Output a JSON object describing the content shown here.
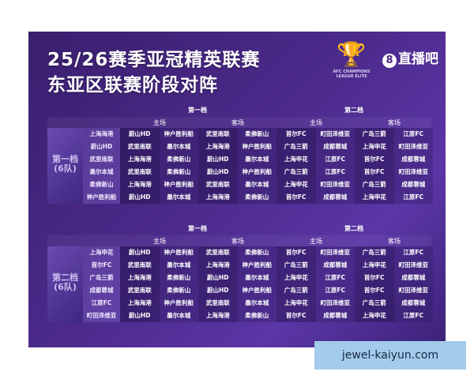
{
  "title": {
    "line1": "25/26赛季亚冠精英联赛",
    "line2": "东亚区联赛阶段对阵"
  },
  "logo": {
    "text": "AFC CHAMPIONS LEAGUE ELITE"
  },
  "brand": {
    "icon": "8",
    "name": "直播吧"
  },
  "headers": {
    "pot1": "第一档",
    "pot2": "第二档",
    "home": "主场",
    "away": "客场"
  },
  "groups": [
    {
      "label": "第一档",
      "count": "(6队)",
      "rows": [
        [
          "上海海港",
          "蔚山HD",
          "神户胜利船",
          "武里南联",
          "柔佛新山",
          "首尔FC",
          "町田泽维亚",
          "广岛三箭",
          "江原FC"
        ],
        [
          "蔚山HD",
          "武里南联",
          "墨尔本城",
          "上海海港",
          "神户胜利船",
          "广岛三箭",
          "成都蓉城",
          "上海申花",
          "町田泽维亚"
        ],
        [
          "武里南联",
          "上海海港",
          "柔佛新山",
          "蔚山HD",
          "墨尔本城",
          "上海申花",
          "江原FC",
          "首尔FC",
          "成都蓉城"
        ],
        [
          "墨尔本城",
          "武里南联",
          "柔佛新山",
          "蔚山HD",
          "神户胜利船",
          "广岛三箭",
          "江原FC",
          "首尔FC",
          "町田泽维亚"
        ],
        [
          "柔佛新山",
          "上海海港",
          "神户胜利船",
          "武里南联",
          "墨尔本城",
          "上海申花",
          "町田泽维亚",
          "广岛三箭",
          "成都蓉城"
        ],
        [
          "神户胜利船",
          "蔚山HD",
          "墨尔本城",
          "上海海港",
          "柔佛新山",
          "首尔FC",
          "成都蓉城",
          "上海申花",
          "江原FC"
        ]
      ]
    },
    {
      "label": "第二档",
      "count": "(6队)",
      "rows": [
        [
          "上海申花",
          "蔚山HD",
          "神户胜利船",
          "武里南联",
          "柔佛新山",
          "首尔FC",
          "町田泽维亚",
          "广岛三箭",
          "江原FC"
        ],
        [
          "首尔FC",
          "武里南联",
          "墨尔本城",
          "上海海港",
          "神户胜利船",
          "广岛三箭",
          "成都蓉城",
          "上海申花",
          "町田泽维亚"
        ],
        [
          "广岛三箭",
          "上海海港",
          "柔佛新山",
          "蔚山HD",
          "墨尔本城",
          "上海申花",
          "江原FC",
          "首尔FC",
          "成都蓉城"
        ],
        [
          "成都蓉城",
          "武里南联",
          "柔佛新山",
          "蔚山HD",
          "神户胜利船",
          "广岛三箭",
          "江原FC",
          "首尔FC",
          "町田泽维亚"
        ],
        [
          "江原FC",
          "上海海港",
          "神户胜利船",
          "武里南联",
          "墨尔本城",
          "上海申花",
          "町田泽维亚",
          "广岛三箭",
          "成都蓉城"
        ],
        [
          "町田泽维亚",
          "蔚山HD",
          "墨尔本城",
          "上海海港",
          "柔佛新山",
          "首尔FC",
          "成都蓉城",
          "上海申花",
          "江原FC"
        ]
      ]
    }
  ],
  "watermark": "jewel-kaiyun.com"
}
